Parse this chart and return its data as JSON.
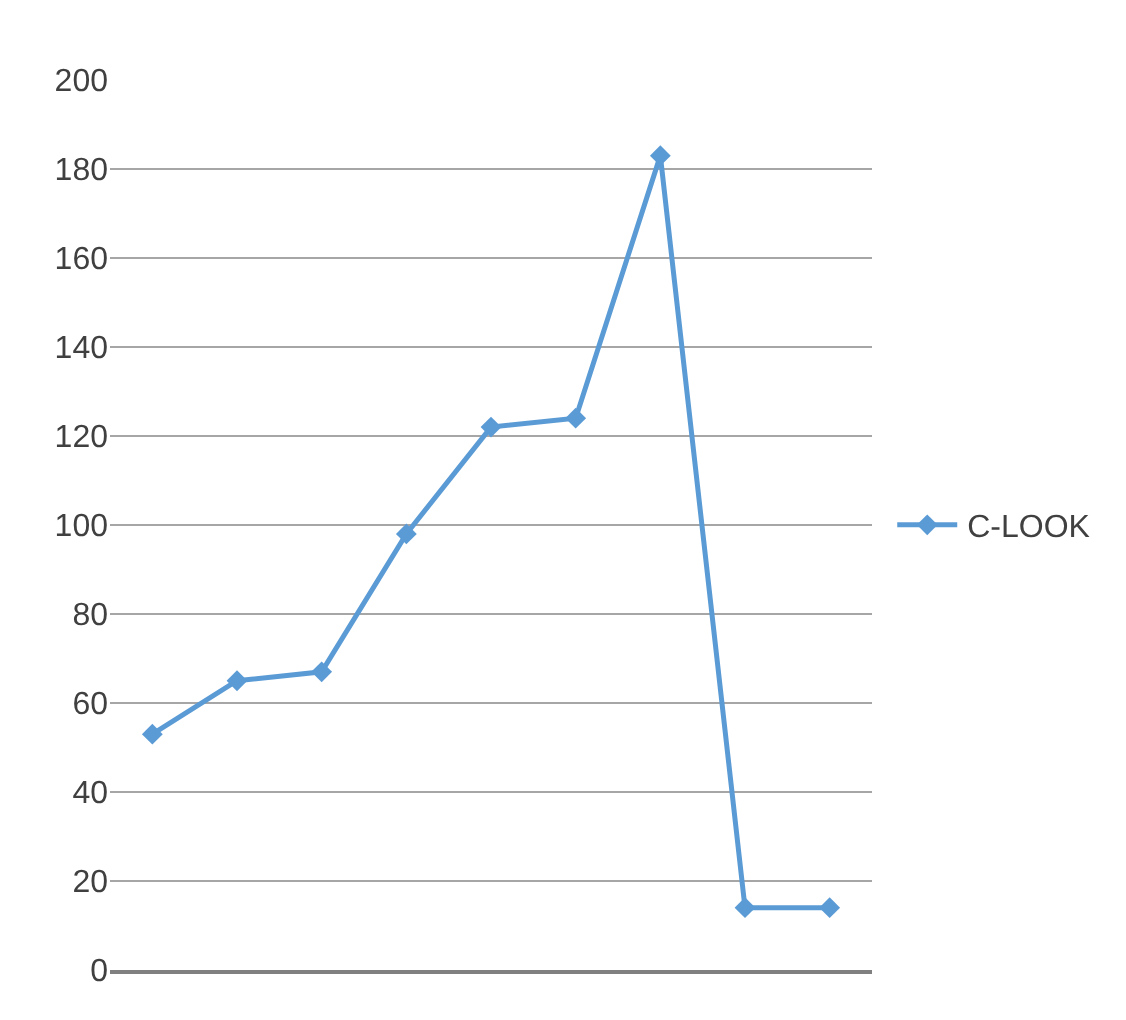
{
  "chart_data": {
    "type": "line",
    "categories": [
      null,
      null,
      null,
      null,
      null,
      null,
      null,
      null,
      null
    ],
    "series": [
      {
        "name": "C-LOOK",
        "color": "#5b9bd5",
        "values": [
          53,
          65,
          67,
          98,
          122,
          124,
          183,
          14,
          14
        ]
      }
    ],
    "ylim": [
      0,
      200
    ],
    "yticks": [
      0,
      20,
      40,
      60,
      80,
      100,
      120,
      140,
      160,
      180,
      200
    ],
    "grid": "y",
    "legend": "right",
    "marker": "diamond",
    "line_style": "solid"
  }
}
